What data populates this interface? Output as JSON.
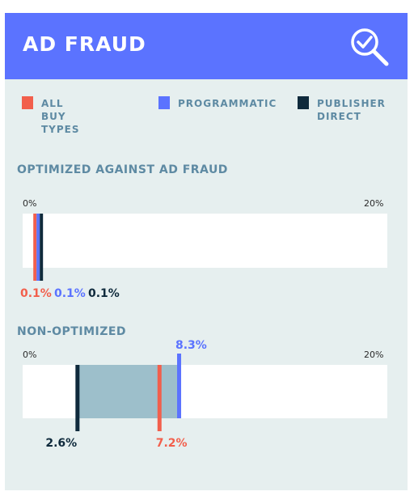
{
  "header": {
    "title": "AD FRAUD",
    "icon": "search-check-icon"
  },
  "legend": [
    {
      "label": "ALL BUY TYPES",
      "color": "#f25f4c"
    },
    {
      "label": "PROGRAMMATIC",
      "color": "#5b73ff"
    },
    {
      "label": "PUBLISHER\nDIRECT",
      "color": "#0f2a3c"
    }
  ],
  "colors": {
    "header": "#5b73ff",
    "background": "#e6efef",
    "title": "#5e8aa3",
    "range_fill": "#9dbfcb"
  },
  "chart_data": [
    {
      "type": "bar",
      "title": "OPTIMIZED AGAINST AD FRAUD",
      "xlim": [
        0,
        20
      ],
      "tick_labels": [
        "0%",
        "20%"
      ],
      "series": [
        {
          "name": "ALL BUY TYPES",
          "value": 0.1,
          "label": "0.1%",
          "color": "#f25f4c"
        },
        {
          "name": "PROGRAMMATIC",
          "value": 0.1,
          "label": "0.1%",
          "color": "#5b73ff"
        },
        {
          "name": "PUBLISHER DIRECT",
          "value": 0.1,
          "label": "0.1%",
          "color": "#0f2a3c"
        }
      ]
    },
    {
      "type": "bar",
      "title": "NON-OPTIMIZED",
      "xlim": [
        0,
        20
      ],
      "tick_labels": [
        "0%",
        "20%"
      ],
      "range": [
        2.6,
        8.3
      ],
      "series": [
        {
          "name": "PUBLISHER DIRECT",
          "value": 2.6,
          "label": "2.6%",
          "color": "#0f2a3c"
        },
        {
          "name": "ALL BUY TYPES",
          "value": 7.2,
          "label": "7.2%",
          "color": "#f25f4c"
        },
        {
          "name": "PROGRAMMATIC",
          "value": 8.3,
          "label": "8.3%",
          "color": "#5b73ff"
        }
      ]
    }
  ]
}
